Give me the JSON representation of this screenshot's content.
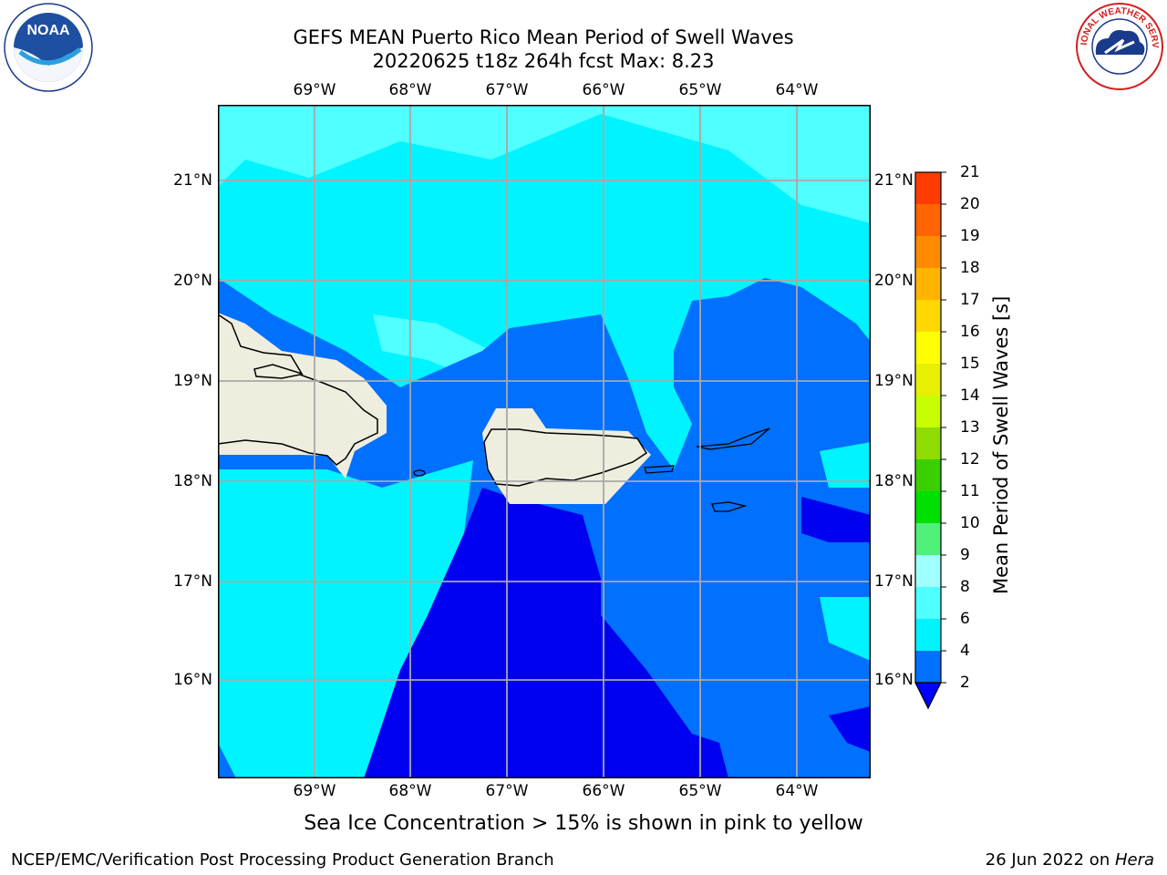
{
  "title": {
    "line1": "GEFS MEAN Puerto Rico Mean Period of Swell Waves",
    "line2": "20220625 t18z 264h fcst   Max: 8.23"
  },
  "map": {
    "lon_ticks": [
      "69°W",
      "68°W",
      "67°W",
      "66°W",
      "65°W",
      "64°W"
    ],
    "lat_ticks": [
      "21°N",
      "20°N",
      "19°N",
      "18°N",
      "17°N",
      "16°N"
    ],
    "land_color": "#efedde"
  },
  "colorbar": {
    "label": "Mean Period of Swell Waves [s]",
    "ticks": [
      "2",
      "4",
      "6",
      "8",
      "9",
      "10",
      "11",
      "12",
      "13",
      "14",
      "15",
      "16",
      "17",
      "18",
      "19",
      "20",
      "21"
    ],
    "colors": [
      "#0070ff",
      "#00f4ff",
      "#50ffff",
      "#a0ffff",
      "#50f07a",
      "#00e000",
      "#3ad000",
      "#90dc00",
      "#c8ff00",
      "#e6f000",
      "#ffff00",
      "#ffd800",
      "#ffb400",
      "#ff8c00",
      "#ff6400",
      "#ff3c00",
      "#ff0000"
    ],
    "extend_color": "#0000ff"
  },
  "palette": {
    "deep": "#0000f0",
    "blue": "#0070ff",
    "cyan": "#00f4ff",
    "light_cyan": "#50ffff"
  },
  "note": "Sea Ice Concentration > 15% is shown in pink to yellow",
  "footer": {
    "left": "NCEP/EMC/Verification Post Processing Product Generation Branch",
    "right_date": "26 Jun 2022 on ",
    "right_host": "Hera"
  },
  "logos": {
    "noaa": "NOAA",
    "nws": "NATIONAL WEATHER SERVICE"
  }
}
